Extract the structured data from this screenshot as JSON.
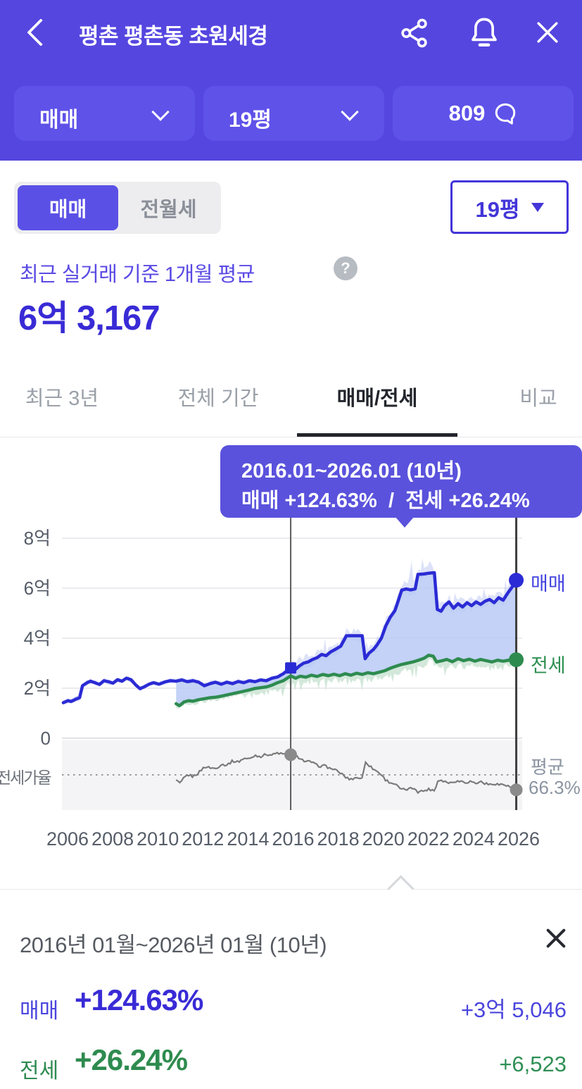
{
  "header": {
    "title": "평촌 평촌동 초원세경"
  },
  "filters": {
    "trade_type": "매매",
    "area": "19평",
    "chat_count": "809"
  },
  "toggle": {
    "sale": "매매",
    "rent": "전월세",
    "selected": "매매"
  },
  "area_select": {
    "value": "19평"
  },
  "price_summary": {
    "caption": "최근 실거래 기준 1개월 평균",
    "help_icon": "?",
    "value": "6억 3,167"
  },
  "tabs": [
    {
      "label": "최근 3년",
      "active": false
    },
    {
      "label": "전체 기간",
      "active": false
    },
    {
      "label": "매매/전세",
      "active": true
    },
    {
      "label": "비교",
      "active": false
    }
  ],
  "tooltip": {
    "period": "2016.01~2026.01 (10년)",
    "change": "매매 +124.63%  /  전세 +26.24%"
  },
  "chart_data": {
    "type": "line",
    "x_ticks": [
      "2006",
      "2008",
      "2010",
      "2012",
      "2014",
      "2016",
      "2018",
      "2020",
      "2022",
      "2024",
      "2026"
    ],
    "y_ticks": [
      {
        "label": "8억",
        "value": 8
      },
      {
        "label": "6억",
        "value": 6
      },
      {
        "label": "4억",
        "value": 4
      },
      {
        "label": "2억",
        "value": 2
      },
      {
        "label": "0",
        "value": 0
      }
    ],
    "x_range": [
      2006,
      2026.3
    ],
    "ylim": [
      0,
      8.8
    ],
    "unit": "억",
    "series": [
      {
        "name": "매매",
        "color": "#2b2bd5",
        "band_color": "#bcc6f3",
        "points": [
          [
            2006.0,
            1.42
          ],
          [
            2006.2,
            1.5
          ],
          [
            2006.35,
            1.47
          ],
          [
            2006.55,
            1.56
          ],
          [
            2006.72,
            1.62
          ],
          [
            2006.85,
            2.1
          ],
          [
            2007.05,
            2.22
          ],
          [
            2007.2,
            2.28
          ],
          [
            2007.4,
            2.22
          ],
          [
            2007.6,
            2.15
          ],
          [
            2007.8,
            2.3
          ],
          [
            2008.0,
            2.26
          ],
          [
            2008.2,
            2.2
          ],
          [
            2008.4,
            2.34
          ],
          [
            2008.6,
            2.28
          ],
          [
            2008.8,
            2.4
          ],
          [
            2009.0,
            2.34
          ],
          [
            2009.2,
            2.14
          ],
          [
            2009.4,
            1.98
          ],
          [
            2009.6,
            2.06
          ],
          [
            2009.8,
            2.16
          ],
          [
            2010.0,
            2.22
          ],
          [
            2010.25,
            2.16
          ],
          [
            2010.5,
            2.25
          ],
          [
            2010.75,
            2.3
          ],
          [
            2011.0,
            2.28
          ],
          [
            2011.25,
            2.33
          ],
          [
            2011.5,
            2.26
          ],
          [
            2011.75,
            2.3
          ],
          [
            2012.0,
            2.24
          ],
          [
            2012.25,
            2.1
          ],
          [
            2012.5,
            2.18
          ],
          [
            2012.75,
            2.24
          ],
          [
            2013.0,
            2.16
          ],
          [
            2013.25,
            2.24
          ],
          [
            2013.5,
            2.18
          ],
          [
            2013.75,
            2.27
          ],
          [
            2014.0,
            2.22
          ],
          [
            2014.25,
            2.3
          ],
          [
            2014.5,
            2.26
          ],
          [
            2014.75,
            2.33
          ],
          [
            2015.0,
            2.3
          ],
          [
            2015.25,
            2.4
          ],
          [
            2015.5,
            2.45
          ],
          [
            2015.75,
            2.58
          ],
          [
            2016.08,
            2.81
          ],
          [
            2016.25,
            2.72
          ],
          [
            2016.45,
            2.88
          ],
          [
            2016.65,
            3.0
          ],
          [
            2016.85,
            3.05
          ],
          [
            2017.05,
            3.15
          ],
          [
            2017.25,
            3.22
          ],
          [
            2017.45,
            3.35
          ],
          [
            2017.65,
            3.3
          ],
          [
            2017.85,
            3.45
          ],
          [
            2018.05,
            3.55
          ],
          [
            2018.3,
            3.68
          ],
          [
            2018.55,
            4.1
          ],
          [
            2019.25,
            4.1
          ],
          [
            2019.38,
            3.18
          ],
          [
            2019.55,
            3.4
          ],
          [
            2019.75,
            3.55
          ],
          [
            2019.9,
            3.72
          ],
          [
            2020.1,
            4.0
          ],
          [
            2020.3,
            4.5
          ],
          [
            2020.5,
            4.85
          ],
          [
            2020.7,
            5.1
          ],
          [
            2020.85,
            5.5
          ],
          [
            2021.0,
            5.92
          ],
          [
            2021.2,
            5.97
          ],
          [
            2021.4,
            5.93
          ],
          [
            2021.6,
            5.97
          ],
          [
            2021.72,
            6.55
          ],
          [
            2022.0,
            6.57
          ],
          [
            2022.2,
            6.6
          ],
          [
            2022.45,
            6.62
          ],
          [
            2022.58,
            5.15
          ],
          [
            2022.75,
            5.08
          ],
          [
            2022.9,
            5.3
          ],
          [
            2023.1,
            5.45
          ],
          [
            2023.3,
            5.2
          ],
          [
            2023.5,
            5.38
          ],
          [
            2023.7,
            5.25
          ],
          [
            2023.9,
            5.42
          ],
          [
            2024.1,
            5.3
          ],
          [
            2024.3,
            5.45
          ],
          [
            2024.5,
            5.35
          ],
          [
            2024.7,
            5.48
          ],
          [
            2024.9,
            5.55
          ],
          [
            2025.1,
            5.42
          ],
          [
            2025.3,
            5.62
          ],
          [
            2025.5,
            5.52
          ],
          [
            2025.7,
            5.8
          ],
          [
            2025.9,
            6.05
          ],
          [
            2026.08,
            6.32
          ]
        ]
      },
      {
        "name": "전세",
        "color": "#2e8b50",
        "band_color": "#a7d2b5",
        "points": [
          [
            2011.0,
            1.38
          ],
          [
            2011.15,
            1.3
          ],
          [
            2011.35,
            1.45
          ],
          [
            2011.55,
            1.5
          ],
          [
            2011.75,
            1.48
          ],
          [
            2012.0,
            1.54
          ],
          [
            2012.25,
            1.58
          ],
          [
            2012.5,
            1.62
          ],
          [
            2012.75,
            1.64
          ],
          [
            2013.0,
            1.68
          ],
          [
            2013.25,
            1.73
          ],
          [
            2013.5,
            1.78
          ],
          [
            2013.75,
            1.83
          ],
          [
            2014.0,
            1.88
          ],
          [
            2014.25,
            1.93
          ],
          [
            2014.5,
            1.99
          ],
          [
            2014.75,
            2.02
          ],
          [
            2015.0,
            2.05
          ],
          [
            2015.25,
            2.12
          ],
          [
            2015.5,
            2.22
          ],
          [
            2015.75,
            2.3
          ],
          [
            2016.08,
            2.49
          ],
          [
            2016.3,
            2.4
          ],
          [
            2016.5,
            2.48
          ],
          [
            2016.75,
            2.44
          ],
          [
            2017.0,
            2.52
          ],
          [
            2017.25,
            2.47
          ],
          [
            2017.5,
            2.55
          ],
          [
            2017.75,
            2.5
          ],
          [
            2018.0,
            2.56
          ],
          [
            2018.25,
            2.5
          ],
          [
            2018.5,
            2.58
          ],
          [
            2018.75,
            2.52
          ],
          [
            2019.0,
            2.6
          ],
          [
            2019.25,
            2.55
          ],
          [
            2019.5,
            2.62
          ],
          [
            2019.75,
            2.58
          ],
          [
            2020.0,
            2.64
          ],
          [
            2020.25,
            2.7
          ],
          [
            2020.5,
            2.8
          ],
          [
            2020.75,
            2.88
          ],
          [
            2021.0,
            2.95
          ],
          [
            2021.25,
            3.0
          ],
          [
            2021.5,
            3.05
          ],
          [
            2021.75,
            3.12
          ],
          [
            2022.0,
            3.2
          ],
          [
            2022.2,
            3.32
          ],
          [
            2022.4,
            3.28
          ],
          [
            2022.55,
            3.05
          ],
          [
            2022.8,
            3.1
          ],
          [
            2023.0,
            3.15
          ],
          [
            2023.25,
            3.06
          ],
          [
            2023.5,
            3.18
          ],
          [
            2023.75,
            3.1
          ],
          [
            2024.0,
            3.16
          ],
          [
            2024.25,
            3.08
          ],
          [
            2024.5,
            3.15
          ],
          [
            2024.75,
            3.1
          ],
          [
            2025.0,
            3.05
          ],
          [
            2025.25,
            3.12
          ],
          [
            2025.5,
            3.08
          ],
          [
            2025.75,
            3.12
          ],
          [
            2026.08,
            3.14
          ]
        ]
      }
    ],
    "legend": {
      "sale": "매매",
      "jeonse": "전세"
    },
    "ratio_panel": {
      "label": "전세가율",
      "average_label": "평균",
      "average_value_label": "66.3%",
      "average": 66.3,
      "line_color": "#7b7b7b"
    },
    "selection": {
      "start": 2016.08,
      "end": 2026.08,
      "start_sale": 2.81,
      "end_sale": 6.32,
      "start_jeonse": 2.49,
      "end_jeonse": 3.14
    }
  },
  "detail_panel": {
    "period": "2016년 01월~2026년 01월 (10년)",
    "rows": [
      {
        "label": "매매",
        "percent": "+124.63%",
        "amount": "+3억 5,046"
      },
      {
        "label": "전세",
        "percent": "+26.24%",
        "amount": "+6,523"
      }
    ]
  }
}
